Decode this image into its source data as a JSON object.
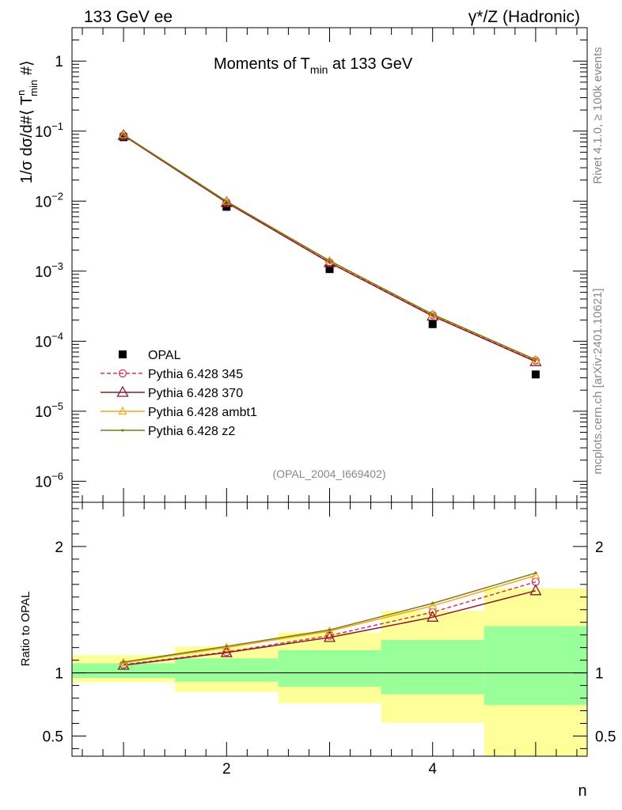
{
  "header": {
    "left": "133 GeV ee",
    "right": "γ*/Z (Hadronic)"
  },
  "side_labels": {
    "rivet": "Rivet 4.1.0, ≥ 100k events",
    "mcplots": "mcplots.cern.ch [arXiv:2401.10621]"
  },
  "chart_data": [
    {
      "type": "line",
      "panel": "main",
      "title": "Moments of T_min at 133 GeV",
      "title_parts": {
        "base": "Moments of T",
        "sub": "min",
        "tail": " at 133 GeV"
      },
      "ylabel": "1/σ  dσ/d#⟨ T^n_min #⟩",
      "ylabel_parts": {
        "pre": "1/σ  dσ/d#⟨ T",
        "sup": "n",
        "sub": "min",
        "post": "  #⟩"
      },
      "xlabel": "n",
      "xlim": [
        0.5,
        5.5
      ],
      "ylim": [
        5e-07,
        3
      ],
      "yscale": "log",
      "ytick_labels": [
        {
          "value": 1,
          "mant": "1",
          "exp": ""
        },
        {
          "value": 0.1,
          "mant": "10",
          "exp": "−1"
        },
        {
          "value": 0.01,
          "mant": "10",
          "exp": "−2"
        },
        {
          "value": 0.001,
          "mant": "10",
          "exp": "−3"
        },
        {
          "value": 0.0001,
          "mant": "10",
          "exp": "−4"
        },
        {
          "value": 1e-05,
          "mant": "10",
          "exp": "−5"
        },
        {
          "value": 1e-06,
          "mant": "10",
          "exp": "−6"
        }
      ],
      "x": [
        1,
        2,
        3,
        4,
        5
      ],
      "series": [
        {
          "name": "OPAL",
          "marker": "square",
          "color": "#000000",
          "values": [
            0.082,
            0.0083,
            0.00107,
            0.000175,
            3.35e-05
          ]
        },
        {
          "name": "Pythia 6.428 345",
          "marker": "circle",
          "dash": true,
          "color": "#c83a5a",
          "values": [
            0.087,
            0.0096,
            0.00133,
            0.000236,
            5.3e-05
          ]
        },
        {
          "name": "Pythia 6.428 370",
          "marker": "triangle",
          "color": "#8b1a2e",
          "values": [
            0.0865,
            0.00955,
            0.00132,
            0.000228,
            5.1e-05
          ]
        },
        {
          "name": "Pythia 6.428 ambt1",
          "marker": "triangle-small",
          "color": "#f0a81e",
          "values": [
            0.0885,
            0.0099,
            0.0014,
            0.00024,
            5.4e-05
          ]
        },
        {
          "name": "Pythia 6.428 z2",
          "marker": "dot",
          "color": "#7a7a14",
          "values": [
            0.0885,
            0.00993,
            0.00141,
            0.000242,
            5.45e-05
          ]
        }
      ],
      "watermark": "(OPAL_2004_I669402)"
    },
    {
      "type": "line",
      "panel": "ratio",
      "ylabel": "Ratio to OPAL",
      "xlabel": "n",
      "xlim": [
        0.5,
        5.5
      ],
      "ylim": [
        0.34,
        2.35
      ],
      "ytick_labels": [
        {
          "value": 2,
          "label": "2"
        },
        {
          "value": 1,
          "label": "1"
        },
        {
          "value": 0.5,
          "label": "0.5"
        }
      ],
      "xtick_labels": [
        {
          "value": 2,
          "label": "2"
        },
        {
          "value": 4,
          "label": "4"
        }
      ],
      "bands": {
        "bins": [
          [
            0.5,
            1.5
          ],
          [
            1.5,
            2.5
          ],
          [
            2.5,
            3.5
          ],
          [
            3.5,
            4.5
          ],
          [
            4.5,
            5.5
          ]
        ],
        "yellow": [
          [
            0.925,
            1.14
          ],
          [
            0.85,
            1.21
          ],
          [
            0.76,
            1.32
          ],
          [
            0.605,
            1.49
          ],
          [
            0.34,
            1.67
          ]
        ],
        "green": [
          [
            0.96,
            1.075
          ],
          [
            0.93,
            1.115
          ],
          [
            0.89,
            1.18
          ],
          [
            0.83,
            1.26
          ],
          [
            0.745,
            1.37
          ]
        ]
      },
      "x": [
        1,
        2,
        3,
        4,
        5
      ],
      "series": [
        {
          "name": "Pythia 6.428 345",
          "marker": "circle",
          "dash": true,
          "color": "#c83a5a",
          "values": [
            1.065,
            1.165,
            1.295,
            1.48,
            1.72
          ]
        },
        {
          "name": "Pythia 6.428 370",
          "marker": "triangle",
          "color": "#8b1a2e",
          "values": [
            1.06,
            1.16,
            1.28,
            1.44,
            1.65
          ]
        },
        {
          "name": "Pythia 6.428 ambt1",
          "marker": "triangle-small",
          "color": "#f0a81e",
          "values": [
            1.08,
            1.2,
            1.33,
            1.53,
            1.77
          ]
        },
        {
          "name": "Pythia 6.428 z2",
          "marker": "dot",
          "color": "#7a7a14",
          "values": [
            1.085,
            1.21,
            1.34,
            1.55,
            1.79
          ]
        }
      ]
    }
  ]
}
